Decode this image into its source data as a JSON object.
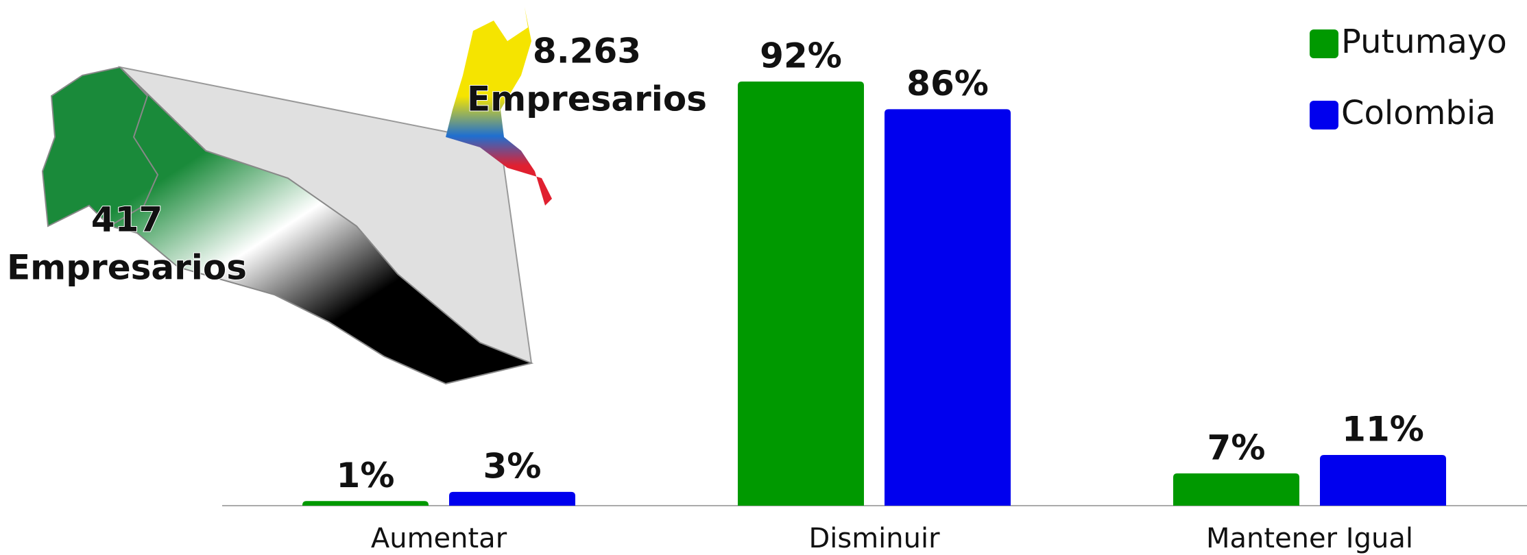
{
  "chart_data": {
    "type": "bar",
    "categories": [
      "Aumentar",
      "Disminuir",
      "Mantener Igual"
    ],
    "series": [
      {
        "name": "Putumayo",
        "color": "#009900",
        "values": [
          1,
          92,
          7
        ],
        "value_labels": [
          "1%",
          "92%",
          "7%"
        ]
      },
      {
        "name": "Colombia",
        "color": "#0000ee",
        "values": [
          3,
          86,
          11
        ],
        "value_labels": [
          "3%",
          "86%",
          "11%"
        ]
      }
    ],
    "legend": "top-right",
    "annotations": [
      {
        "lines": [
          "8.263",
          "Empresarios"
        ]
      },
      {
        "lines": [
          "417",
          "Empresarios"
        ]
      }
    ]
  }
}
